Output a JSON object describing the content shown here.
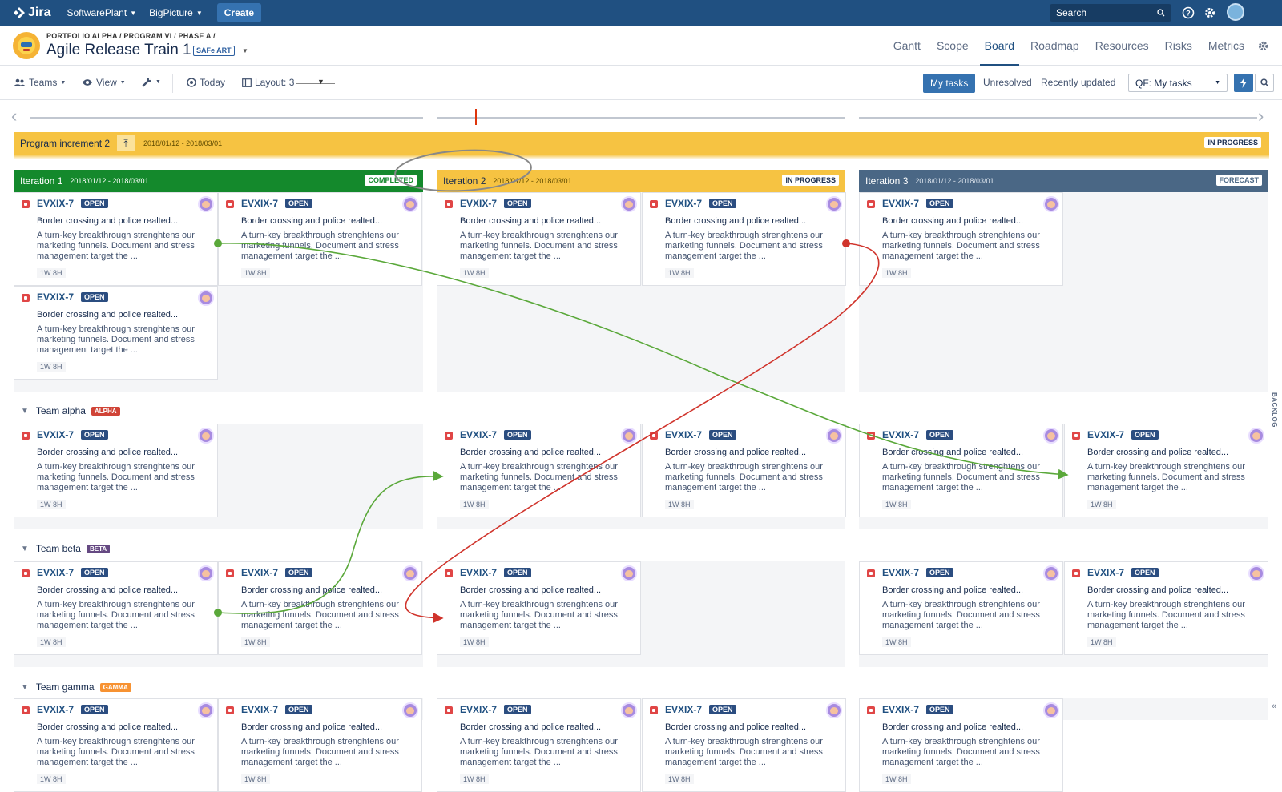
{
  "topbar": {
    "app_name": "Jira",
    "menus": [
      "SoftwarePlant",
      "BigPicture"
    ],
    "create_label": "Create",
    "search_placeholder": "Search"
  },
  "header": {
    "breadcrumb": "PORTFOLIO ALPHA / PROGRAM VI / PHASE A /",
    "title": "Agile Release Train 1",
    "badge": "SAFe ART",
    "tabs": [
      "Gantt",
      "Scope",
      "Board",
      "Roadmap",
      "Resources",
      "Risks",
      "Metrics"
    ],
    "active_tab": "Board"
  },
  "toolbar": {
    "teams_label": "Teams",
    "view_label": "View",
    "today_label": "Today",
    "layout_label": "Layout: 3",
    "my_tasks_label": "My tasks",
    "unresolved_label": "Unresolved",
    "recently_updated_label": "Recently updated",
    "quick_filter_value": "QF: My tasks"
  },
  "program_increment": {
    "name": "Program increment 2",
    "dates": "2018/01/12 - 2018/03/01",
    "status": "IN PROGRESS"
  },
  "iterations": [
    {
      "name": "Iteration 1",
      "dates": "2018/01/12 - 2018/03/01",
      "status": "COMPLETED",
      "color": "#14892c"
    },
    {
      "name": "Iteration 2",
      "dates": "2018/01/12 - 2018/03/01",
      "status": "IN PROGRESS",
      "color": "#f6c342"
    },
    {
      "name": "Iteration 3",
      "dates": "2018/01/12 - 2018/03/01",
      "status": "FORECAST",
      "color": "#4a6785"
    }
  ],
  "teams": [
    {
      "name": "Team alpha",
      "badge": "ALPHA",
      "color": "#d04437"
    },
    {
      "name": "Team beta",
      "badge": "BETA",
      "color": "#654982"
    },
    {
      "name": "Team gamma",
      "badge": "GAMMA",
      "color": "#f79232"
    }
  ],
  "card": {
    "key": "EVXIX-7",
    "status": "OPEN",
    "summary": "Border crossing and police realted...",
    "description": "A turn-key breakthrough strenghtens our marketing funnels. Document and stress management target the ...",
    "estimate": "1W 8H"
  },
  "backlog_label": "BACKLOG",
  "colors": {
    "primary": "#205081",
    "dependency_ok": "#5aa83a",
    "dependency_conflict": "#d0342c"
  }
}
